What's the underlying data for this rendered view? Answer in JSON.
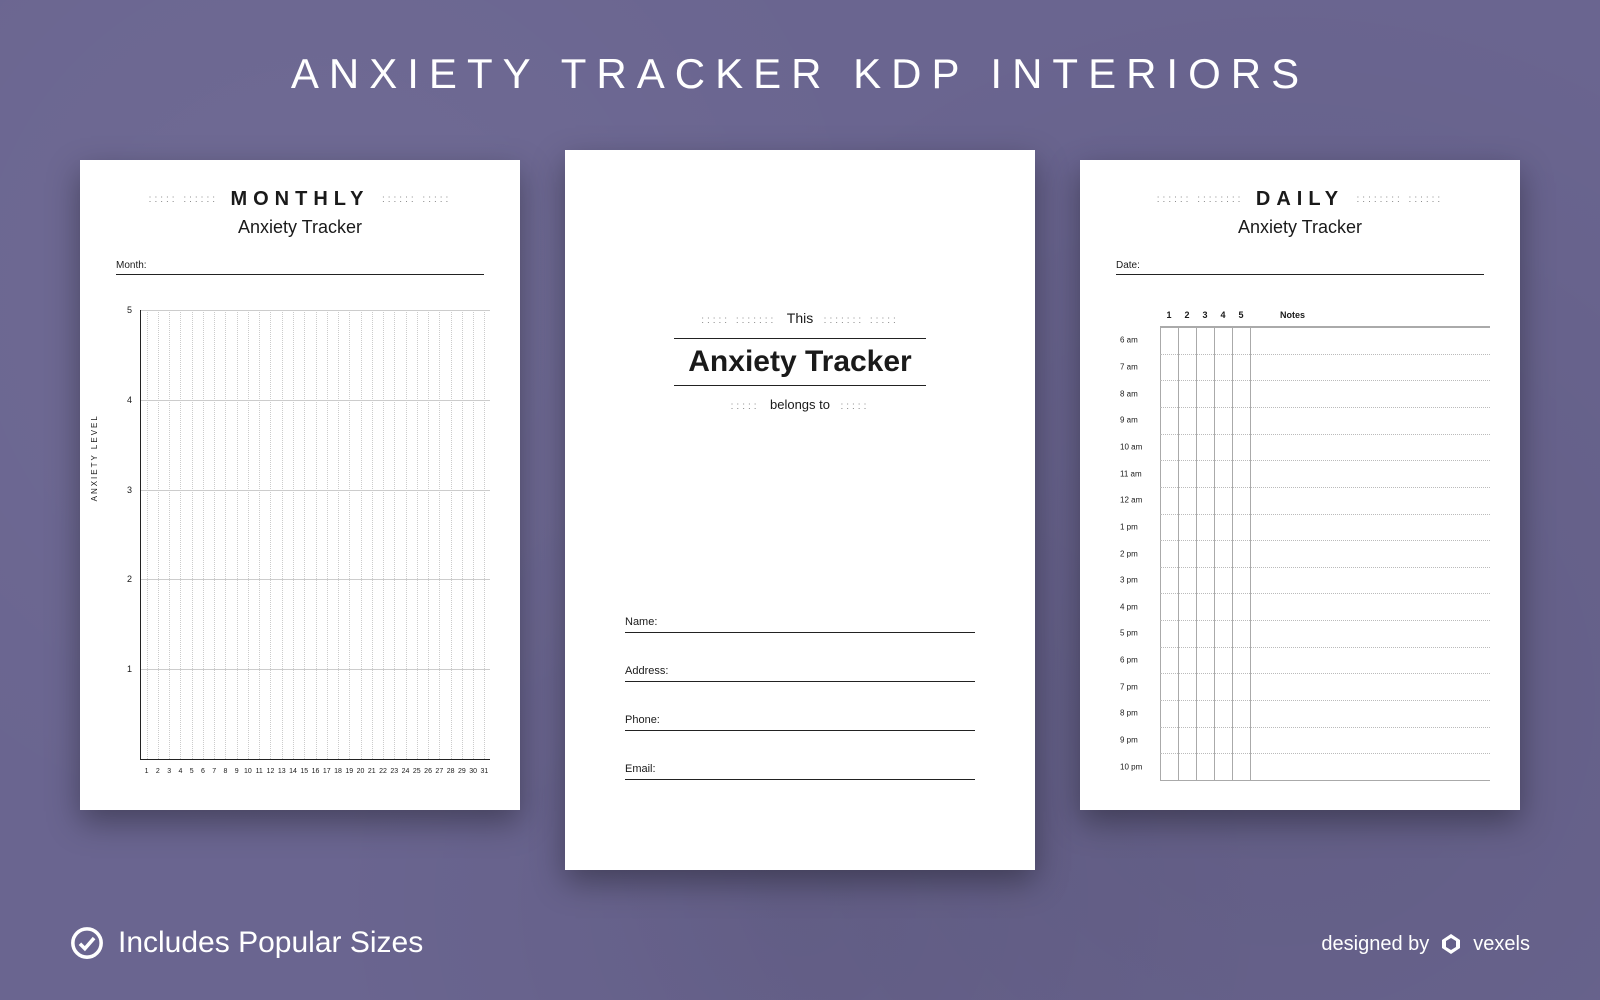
{
  "header": {
    "title_bold": "ANXIETY TRACKER",
    "title_light": "KDP INTERIORS"
  },
  "colors": {
    "background": "#6a6590",
    "page_bg": "#ffffff",
    "text": "#1a1a1a",
    "grid": "#cccccc",
    "footer_text": "#ffffff"
  },
  "monthly": {
    "band_word": "MONTHLY",
    "subtitle": "Anxiety Tracker",
    "field_label": "Month:",
    "y_axis_label": "ANXIETY LEVEL",
    "y_ticks": [
      1,
      2,
      3,
      4,
      5
    ],
    "x_days": [
      1,
      2,
      3,
      4,
      5,
      6,
      7,
      8,
      9,
      10,
      11,
      12,
      13,
      14,
      15,
      16,
      17,
      18,
      19,
      20,
      21,
      22,
      23,
      24,
      25,
      26,
      27,
      28,
      29,
      30,
      31
    ],
    "ylim": [
      0,
      5
    ]
  },
  "cover": {
    "this_word": "This",
    "main_title": "Anxiety Tracker",
    "belongs_to": "belongs to",
    "fields": [
      "Name:",
      "Address:",
      "Phone:",
      "Email:"
    ]
  },
  "daily": {
    "band_word": "DAILY",
    "subtitle": "Anxiety Tracker",
    "field_label": "Date:",
    "level_cols": [
      1,
      2,
      3,
      4,
      5
    ],
    "notes_label": "Notes",
    "times": [
      "6 am",
      "7 am",
      "8 am",
      "9 am",
      "10 am",
      "11 am",
      "12 am",
      "1 pm",
      "2 pm",
      "3 pm",
      "4 pm",
      "5 pm",
      "6 pm",
      "7 pm",
      "8 pm",
      "9 pm",
      "10 pm"
    ]
  },
  "footer": {
    "includes_bold": "Includes",
    "includes_light": "Popular Sizes",
    "designed_by": "designed by",
    "brand": "vexels"
  }
}
